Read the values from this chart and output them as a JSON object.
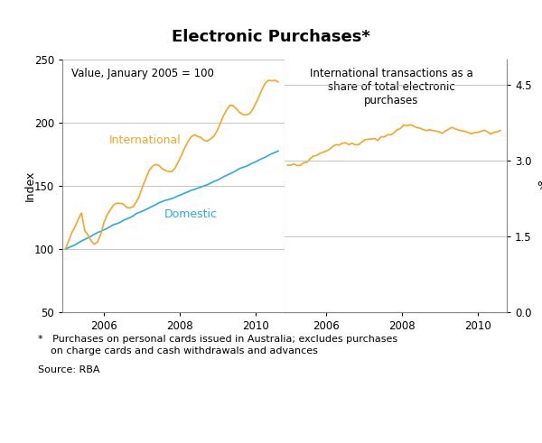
{
  "title": "Electronic Purchases*",
  "left_ylabel": "Index",
  "right_ylabel": "%",
  "left_ylim": [
    50,
    250
  ],
  "right_ylim": [
    0.0,
    5.0
  ],
  "left_yticks": [
    50,
    100,
    150,
    200,
    250
  ],
  "right_yticks": [
    0.0,
    1.5,
    3.0,
    4.5
  ],
  "left_annotation": "Value, January 2005 = 100",
  "right_annotation": "International transactions as a\nshare of total electronic\npurchases",
  "domestic_label": "Domestic",
  "international_label": "International",
  "domestic_color": "#29ABE2",
  "international_color": "#F5A623",
  "line_width": 1.2,
  "footnote_star": "*   Purchases on personal cards issued in Australia; excludes purchases\n    on charge cards and cash withdrawals and advances",
  "footnote_source": "Source: RBA",
  "background_color": "#FFFFFF",
  "grid_color": "#BBBBBB",
  "spine_color": "#888888"
}
